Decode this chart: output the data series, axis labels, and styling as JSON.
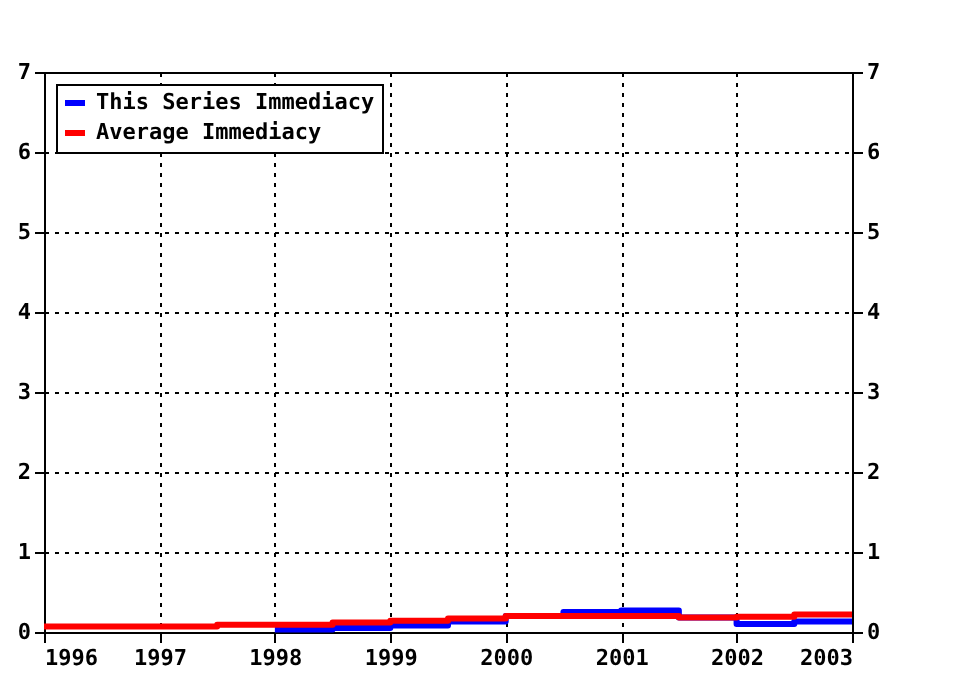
{
  "chart_data": {
    "type": "step",
    "xlim": [
      1996,
      2003
    ],
    "xticks": [
      1996,
      1997,
      1998,
      1999,
      2000,
      2001,
      2002,
      2003
    ],
    "ylim": [
      0,
      7
    ],
    "yticks": [
      0,
      1,
      2,
      3,
      4,
      5,
      6,
      7
    ],
    "y2lim": [
      0,
      7
    ],
    "y2ticks": [
      0,
      1,
      2,
      3,
      4,
      5,
      6,
      7
    ],
    "grid": true,
    "legend": "top left",
    "line_style": "solid",
    "series": [
      {
        "name": "This Series Immediacy",
        "color": "#0000ff",
        "x": [
          1998,
          1998.5,
          1999,
          1999.5,
          2000,
          2000.5,
          2001,
          2001.5,
          2002,
          2002.5,
          2003
        ],
        "values": [
          0.03,
          0.05,
          0.08,
          0.13,
          0.2,
          0.25,
          0.27,
          0.18,
          0.1,
          0.13,
          0.13
        ]
      },
      {
        "name": "Average Immediacy",
        "color": "#ff0000",
        "x": [
          1996,
          1997.5,
          1998.5,
          1999,
          1999.5,
          2000,
          2000.5,
          2001,
          2001.5,
          2002,
          2002.5,
          2003
        ],
        "values": [
          0.07,
          0.09,
          0.12,
          0.14,
          0.17,
          0.2,
          0.2,
          0.2,
          0.18,
          0.19,
          0.22,
          0.22
        ]
      }
    ]
  }
}
